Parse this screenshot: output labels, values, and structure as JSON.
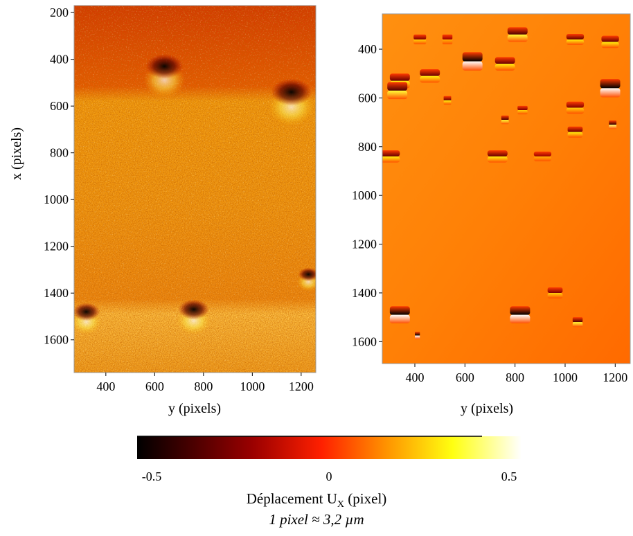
{
  "chart_data": [
    {
      "type": "heatmap",
      "panel": "left",
      "xlabel": "y (pixels)",
      "ylabel": "x (pixels)",
      "x_ticks": [
        400,
        600,
        800,
        1000,
        1200
      ],
      "y_ticks": [
        200,
        400,
        600,
        800,
        1000,
        1200,
        1400,
        1600
      ],
      "x_range": [
        270,
        1260
      ],
      "y_range": [
        170,
        1740
      ],
      "y_inverted": true,
      "background_value": 0.05,
      "upper_band": {
        "x_range": [
          170,
          560
        ],
        "value": -0.2
      },
      "lower_band": {
        "x_range": [
          1500,
          1740
        ],
        "value": 0.18
      },
      "dark_spots": [
        {
          "y": 640,
          "x": 430,
          "r": 55,
          "value": -0.45
        },
        {
          "y": 1160,
          "x": 540,
          "r": 60,
          "value": -0.45
        },
        {
          "y": 320,
          "x": 1480,
          "r": 40,
          "value": -0.4
        },
        {
          "y": 760,
          "x": 1470,
          "r": 45,
          "value": -0.3
        },
        {
          "y": 1230,
          "x": 1320,
          "r": 30,
          "value": -0.3
        }
      ]
    },
    {
      "type": "heatmap",
      "panel": "right",
      "xlabel": "y (pixels)",
      "ylabel": "",
      "x_ticks": [
        400,
        600,
        800,
        1000,
        1200
      ],
      "y_ticks": [
        400,
        600,
        800,
        1000,
        1200,
        1400,
        1600
      ],
      "x_range": [
        270,
        1260
      ],
      "y_range": [
        255,
        1690
      ],
      "y_inverted": true,
      "background_value": 0.0,
      "dipoles": [
        {
          "y": 420,
          "x": 360,
          "w": 50,
          "h": 40,
          "amp": 0.25
        },
        {
          "y": 530,
          "x": 360,
          "w": 40,
          "h": 40,
          "amp": 0.2
        },
        {
          "y": 630,
          "x": 450,
          "w": 80,
          "h": 75,
          "amp": 0.55
        },
        {
          "y": 810,
          "x": 340,
          "w": 80,
          "h": 60,
          "amp": 0.35
        },
        {
          "y": 1040,
          "x": 360,
          "w": 70,
          "h": 45,
          "amp": 0.3
        },
        {
          "y": 1180,
          "x": 370,
          "w": 70,
          "h": 50,
          "amp": 0.3
        },
        {
          "y": 340,
          "x": 530,
          "w": 80,
          "h": 60,
          "amp": 0.3
        },
        {
          "y": 460,
          "x": 510,
          "w": 80,
          "h": 55,
          "amp": 0.3
        },
        {
          "y": 760,
          "x": 460,
          "w": 80,
          "h": 55,
          "amp": 0.3
        },
        {
          "y": 1180,
          "x": 560,
          "w": 80,
          "h": 75,
          "amp": 0.55
        },
        {
          "y": 330,
          "x": 570,
          "w": 80,
          "h": 70,
          "amp": 0.35
        },
        {
          "y": 530,
          "x": 610,
          "w": 30,
          "h": 35,
          "amp": 0.3
        },
        {
          "y": 760,
          "x": 690,
          "w": 30,
          "h": 35,
          "amp": 0.35
        },
        {
          "y": 830,
          "x": 650,
          "w": 40,
          "h": 35,
          "amp": 0.25
        },
        {
          "y": 1040,
          "x": 640,
          "w": 70,
          "h": 50,
          "amp": 0.25
        },
        {
          "y": 1190,
          "x": 710,
          "w": 30,
          "h": 35,
          "amp": 0.4
        },
        {
          "y": 1040,
          "x": 740,
          "w": 60,
          "h": 45,
          "amp": 0.3
        },
        {
          "y": 300,
          "x": 840,
          "w": 80,
          "h": 50,
          "amp": 0.3
        },
        {
          "y": 730,
          "x": 840,
          "w": 80,
          "h": 50,
          "amp": 0.3
        },
        {
          "y": 910,
          "x": 840,
          "w": 70,
          "h": 40,
          "amp": 0.2
        },
        {
          "y": 340,
          "x": 1490,
          "w": 80,
          "h": 70,
          "amp": 0.55
        },
        {
          "y": 820,
          "x": 1490,
          "w": 80,
          "h": 70,
          "amp": 0.5
        },
        {
          "y": 960,
          "x": 1400,
          "w": 60,
          "h": 45,
          "amp": 0.25
        },
        {
          "y": 1050,
          "x": 1520,
          "w": 40,
          "h": 40,
          "amp": 0.35
        },
        {
          "y": 410,
          "x": 1575,
          "w": 20,
          "h": 30,
          "amp": 0.5
        }
      ]
    }
  ],
  "colorbar": {
    "min_label": "-0.5",
    "mid_label": "0",
    "max_label": "0.5",
    "range": [
      -0.5,
      0.5
    ],
    "colormap": "hot",
    "title_main": "Déplacement U",
    "title_sub": "X",
    "title_unit": " (pixel)",
    "note": "1 pixel ≈ 3,2 µm"
  },
  "colors": {
    "black": "#000000",
    "dark_red": "#7a0000",
    "red": "#ff1a00",
    "orange": "#ff8a00",
    "yellow": "#ffff10",
    "white": "#ffffff"
  }
}
